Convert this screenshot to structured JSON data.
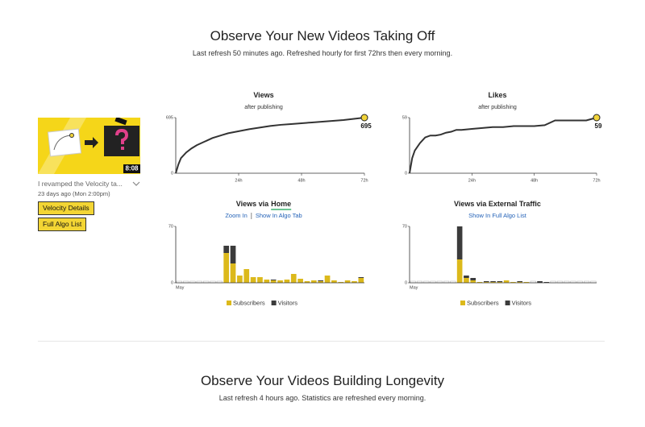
{
  "header": {
    "title": "Observe Your New Videos Taking Off",
    "subtitle": "Last refresh 50 minutes ago. Refreshed hourly for first 72hrs then every morning."
  },
  "video": {
    "duration": "8:08",
    "title": "I revamped the Velocity ta...",
    "date": "23 days ago (Mon 2:00pm)",
    "buttons": [
      "Velocity Details",
      "Full Algo List"
    ]
  },
  "chart_data": [
    {
      "type": "line",
      "title": "Views",
      "subtitle": "after publishing",
      "color": "#333333",
      "marker_color": "#f2d43a",
      "x": [
        0,
        1,
        2,
        4,
        6,
        8,
        10,
        12,
        14,
        16,
        18,
        20,
        24,
        28,
        32,
        36,
        40,
        44,
        48,
        52,
        56,
        60,
        64,
        68,
        72
      ],
      "values": [
        0,
        110,
        190,
        260,
        310,
        350,
        380,
        410,
        440,
        460,
        480,
        500,
        525,
        550,
        570,
        590,
        605,
        615,
        625,
        635,
        645,
        655,
        665,
        680,
        695
      ],
      "xlim": [
        0,
        72
      ],
      "xticks": [
        {
          "value": 24,
          "label": "24h"
        },
        {
          "value": 48,
          "label": "48h"
        },
        {
          "value": 72,
          "label": "72h"
        }
      ],
      "ylim": [
        0,
        695
      ],
      "yticks": [
        0,
        695
      ]
    },
    {
      "type": "line",
      "title": "Likes",
      "subtitle": "after publishing",
      "color": "#333333",
      "marker_color": "#f2d43a",
      "x": [
        0,
        1,
        2,
        4,
        6,
        8,
        10,
        12,
        14,
        16,
        18,
        20,
        24,
        28,
        32,
        36,
        40,
        44,
        48,
        52,
        56,
        60,
        64,
        68,
        72
      ],
      "values": [
        0,
        16,
        24,
        32,
        38,
        40,
        40,
        41,
        43,
        44,
        46,
        46,
        47,
        48,
        49,
        49,
        50,
        50,
        50,
        51,
        56,
        56,
        56,
        56,
        59
      ],
      "xlim": [
        0,
        72
      ],
      "xticks": [
        {
          "value": 24,
          "label": "24h"
        },
        {
          "value": 48,
          "label": "48h"
        },
        {
          "value": 72,
          "label": "72h"
        }
      ],
      "ylim": [
        0,
        59
      ],
      "yticks": [
        0,
        59
      ]
    },
    {
      "type": "bar",
      "title": "Views via",
      "title_link": "Home",
      "links": [
        "Zoom In",
        "Show In Algo Tab"
      ],
      "categories": [
        "May",
        null,
        null,
        null,
        null,
        null,
        null,
        null,
        null,
        null,
        null,
        null,
        null,
        null,
        null,
        null,
        null,
        null,
        null,
        null,
        null,
        null,
        null,
        null,
        null,
        null,
        null,
        null
      ],
      "series": [
        {
          "name": "Subscribers",
          "color": "#dcb91b",
          "values": [
            0,
            0,
            0,
            0,
            0,
            0,
            0,
            37,
            24,
            9,
            17,
            7,
            7,
            4,
            3,
            3,
            4,
            11,
            5,
            2,
            3,
            2,
            9,
            3,
            1,
            3,
            2,
            6
          ]
        },
        {
          "name": "Visitors",
          "color": "#3b3b3b",
          "values": [
            0,
            0,
            0,
            0,
            0,
            0,
            0,
            9,
            22,
            0,
            0,
            0,
            0,
            0,
            1,
            0,
            0,
            0,
            0,
            0,
            0,
            1,
            0,
            0,
            0,
            0,
            0,
            1
          ]
        }
      ],
      "ylim": [
        0,
        70
      ],
      "yticks": [
        0,
        70
      ]
    },
    {
      "type": "bar",
      "title": "Views via External Traffic",
      "links": [
        "Show In Full Algo List"
      ],
      "categories": [
        "May",
        null,
        null,
        null,
        null,
        null,
        null,
        null,
        null,
        null,
        null,
        null,
        null,
        null,
        null,
        null,
        null,
        null,
        null,
        null,
        null,
        null,
        null,
        null,
        null,
        null,
        null,
        null
      ],
      "series": [
        {
          "name": "Subscribers",
          "color": "#dcb91b",
          "values": [
            0,
            0,
            0,
            0,
            0,
            0,
            0,
            29,
            6,
            3,
            1,
            1,
            1,
            1,
            3,
            1,
            1,
            1,
            0,
            0,
            0,
            0,
            0,
            0,
            0,
            0,
            0,
            0
          ]
        },
        {
          "name": "Visitors",
          "color": "#3b3b3b",
          "values": [
            0,
            0,
            0,
            0,
            0,
            0,
            0,
            41,
            3,
            3,
            0,
            1,
            1,
            1,
            0,
            0,
            1,
            0,
            0,
            2,
            1,
            0,
            0,
            0,
            0,
            0,
            0,
            0
          ]
        }
      ],
      "ylim": [
        0,
        70
      ],
      "yticks": [
        0,
        70
      ]
    }
  ],
  "footer": {
    "title": "Observe Your Videos Building Longevity",
    "subtitle": "Last refresh 4 hours ago. Statistics are refreshed every morning."
  }
}
